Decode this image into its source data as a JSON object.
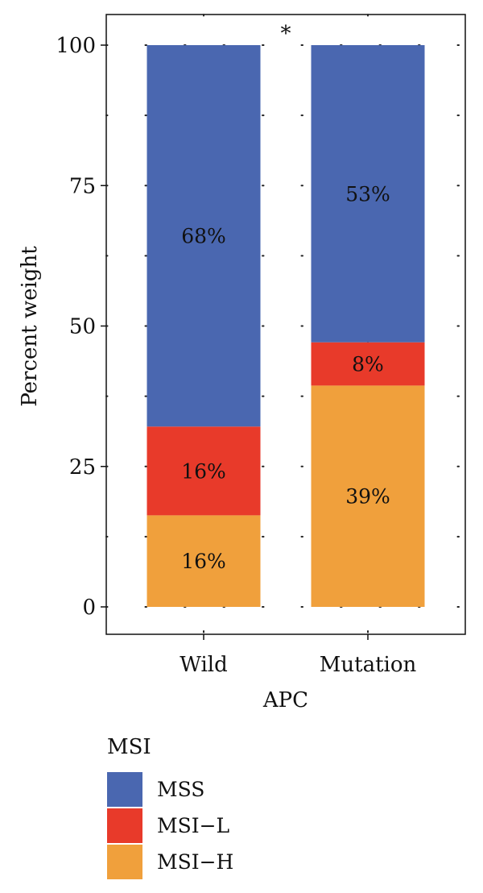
{
  "chart_data": {
    "type": "bar",
    "stacked": true,
    "categories": [
      "Wild",
      "Mutation"
    ],
    "xlabel": "APC",
    "ylabel": "Percent weight",
    "ylim": [
      0,
      100
    ],
    "yticks": [
      "0",
      "25",
      "50",
      "75",
      "100"
    ],
    "grid": "dotted",
    "annotation": "*",
    "series": [
      {
        "name": "MSI−H",
        "color": "#f0a03c",
        "values": [
          16.3,
          39.4
        ],
        "labels": [
          "16%",
          "39%"
        ]
      },
      {
        "name": "MSI−L",
        "color": "#e83a2a",
        "values": [
          15.8,
          7.7
        ],
        "labels": [
          "16%",
          "8%"
        ]
      },
      {
        "name": "MSS",
        "color": "#4a67b0",
        "values": [
          67.9,
          52.9
        ],
        "labels": [
          "68%",
          "53%"
        ]
      }
    ],
    "legend": {
      "title": "MSI",
      "position": "bottom-left",
      "items": [
        {
          "label": "MSS",
          "color": "#4a67b0"
        },
        {
          "label": "MSI−L",
          "color": "#e83a2a"
        },
        {
          "label": "MSI−H",
          "color": "#f0a03c"
        }
      ]
    }
  }
}
